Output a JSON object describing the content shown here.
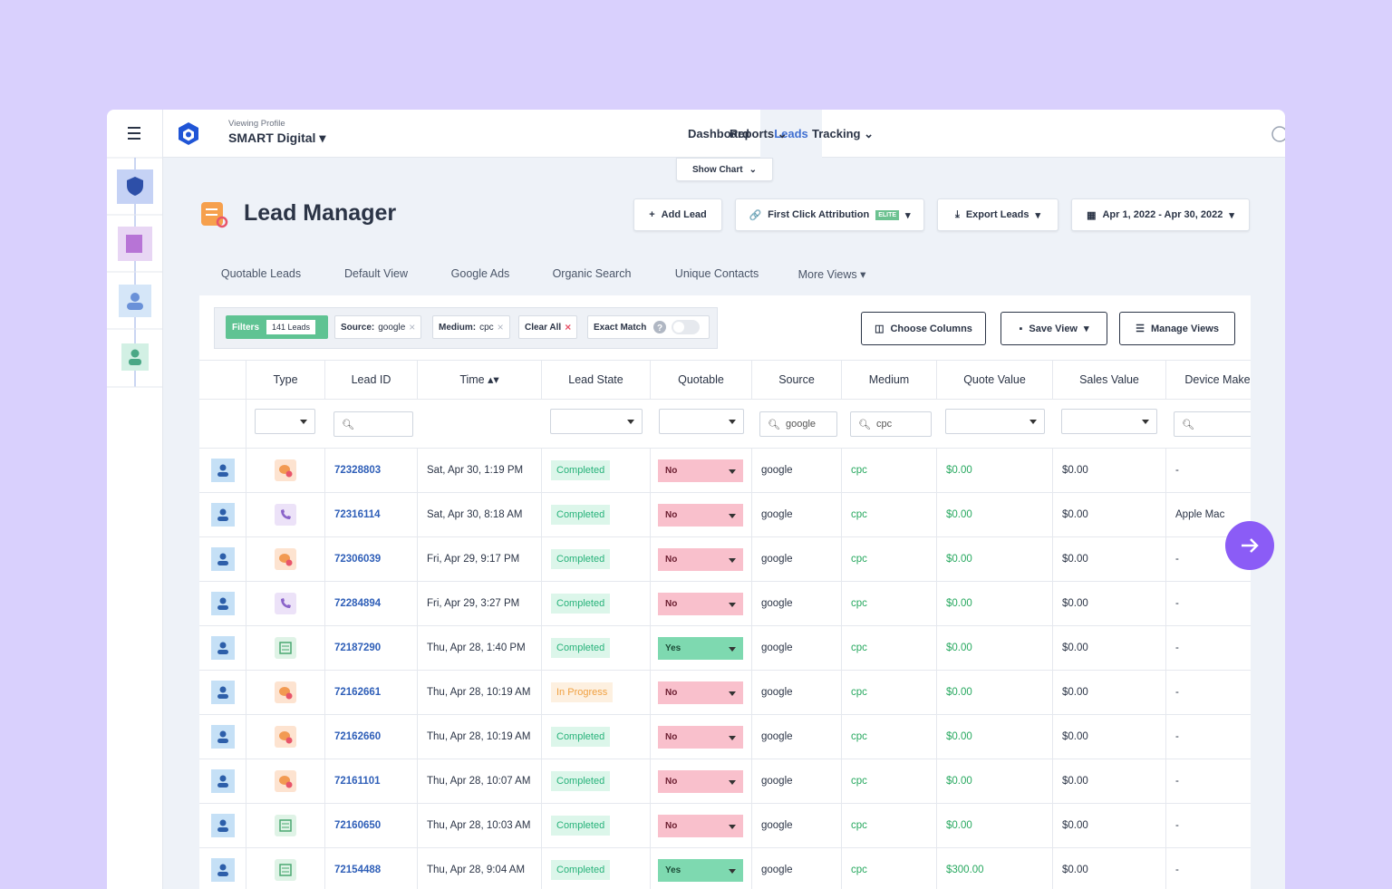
{
  "nav": {
    "profile_label": "Viewing Profile",
    "profile_name": "SMART Digital",
    "links": [
      "Dashboard",
      "Leads",
      "Reports",
      "Tracking"
    ]
  },
  "show_chart": "Show Chart",
  "page_title": "Lead Manager",
  "actions": {
    "add_lead": "Add Lead",
    "attribution": "First Click Attribution",
    "elite": "ELITE",
    "export": "Export Leads",
    "date_range": "Apr 1, 2022 - Apr 30, 2022"
  },
  "views": [
    "Quotable Leads",
    "Default View",
    "Google Ads",
    "Organic Search",
    "Unique Contacts",
    "More Views"
  ],
  "filters": {
    "label": "Filters",
    "count": "141 Leads",
    "chips": [
      {
        "key": "Source:",
        "value": "google"
      },
      {
        "key": "Medium:",
        "value": "cpc"
      }
    ],
    "clear": "Clear All",
    "exact": "Exact Match"
  },
  "table_actions": [
    "Choose Columns",
    "Save View",
    "Manage Views"
  ],
  "table": {
    "columns": [
      "Type",
      "Lead ID",
      "Time",
      "Lead State",
      "Quotable",
      "Source",
      "Medium",
      "Quote Value",
      "Sales Value",
      "Device Make"
    ],
    "filter_inputs": {
      "source": "google",
      "medium": "cpc"
    },
    "rows": [
      [
        "72328803",
        "Sat, Apr 30, 1:19 PM",
        "Completed",
        "No",
        "google",
        "cpc",
        "$0.00",
        "$0.00",
        "-"
      ],
      [
        "72316114",
        "Sat, Apr 30, 8:18 AM",
        "Completed",
        "No",
        "google",
        "cpc",
        "$0.00",
        "$0.00",
        "Apple Mac"
      ],
      [
        "72306039",
        "Fri, Apr 29, 9:17 PM",
        "Completed",
        "No",
        "google",
        "cpc",
        "$0.00",
        "$0.00",
        "-"
      ],
      [
        "72284894",
        "Fri, Apr 29, 3:27 PM",
        "Completed",
        "No",
        "google",
        "cpc",
        "$0.00",
        "$0.00",
        "-"
      ],
      [
        "72187290",
        "Thu, Apr 28, 1:40 PM",
        "Completed",
        "Yes",
        "google",
        "cpc",
        "$0.00",
        "$0.00",
        "-"
      ],
      [
        "72162661",
        "Thu, Apr 28, 10:19 AM",
        "In Progress",
        "No",
        "google",
        "cpc",
        "$0.00",
        "$0.00",
        "-"
      ],
      [
        "72162660",
        "Thu, Apr 28, 10:19 AM",
        "Completed",
        "No",
        "google",
        "cpc",
        "$0.00",
        "$0.00",
        "-"
      ],
      [
        "72161101",
        "Thu, Apr 28, 10:07 AM",
        "Completed",
        "No",
        "google",
        "cpc",
        "$0.00",
        "$0.00",
        "-"
      ],
      [
        "72160650",
        "Thu, Apr 28, 10:03 AM",
        "Completed",
        "No",
        "google",
        "cpc",
        "$0.00",
        "$0.00",
        "-"
      ],
      [
        "72154488",
        "Thu, Apr 28, 9:04 AM",
        "Completed",
        "Yes",
        "google",
        "cpc",
        "$300.00",
        "$0.00",
        "-"
      ]
    ]
  }
}
